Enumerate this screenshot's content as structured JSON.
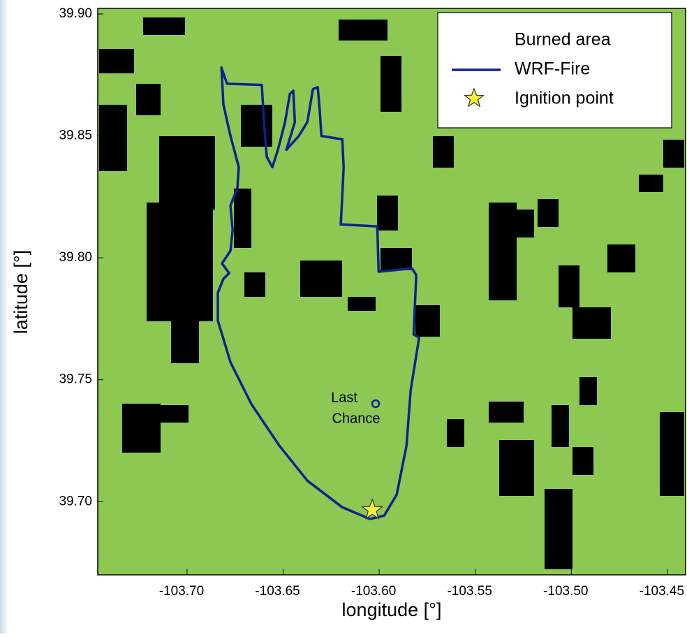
{
  "chart_data": {
    "type": "line",
    "xlabel": "longitude [°]",
    "ylabel": "latitude [°]",
    "xlim": [
      -103.7465,
      -103.4405
    ],
    "ylim": [
      39.67,
      39.9023
    ],
    "xticks": [
      {
        "value": -103.7,
        "label": "-103.70"
      },
      -103.65,
      {
        "value": -103.6,
        "label": "-103.60"
      },
      -103.55,
      {
        "value": -103.5,
        "label": "-103.50"
      },
      -103.45
    ],
    "yticks": [
      {
        "value": 39.7,
        "label": "39.70"
      },
      39.75,
      {
        "value": 39.8,
        "label": "39.80"
      },
      39.85,
      {
        "value": 39.9,
        "label": "39.90"
      }
    ],
    "background_color": "#8cc852",
    "burned_area": {
      "name": "Burned area",
      "color": "#000000"
    },
    "series": [
      {
        "name": "WRF-Fire",
        "color": "#0d2290",
        "x": [
          -103.6047,
          -103.6192,
          -103.6374,
          -103.6519,
          -103.6665,
          -103.6774,
          -103.684,
          -103.684,
          -103.6811,
          -103.6781,
          -103.6818,
          -103.6774,
          -103.6763,
          -103.6774,
          -103.6738,
          -103.6731,
          -103.6774,
          -103.6811,
          -103.6821,
          -103.6792,
          -103.6611,
          -103.66,
          -103.6585,
          -103.6556,
          -103.6527,
          -103.649,
          -103.6465,
          -103.6447,
          -103.6439,
          -103.6483,
          -103.6418,
          -103.6374,
          -103.6345,
          -103.632,
          -103.6309,
          -103.6301,
          -103.6192,
          -103.6185,
          -103.6192,
          -103.62,
          -103.601,
          -103.6003,
          -103.5829,
          -103.5807,
          -103.5821,
          -103.5792,
          -103.5836,
          -103.5858,
          -103.5909,
          -103.5974,
          -103.6047
        ],
        "y": [
          39.6929,
          39.6977,
          39.7086,
          39.7229,
          39.74,
          39.7572,
          39.7743,
          39.7857,
          39.7914,
          39.7937,
          39.7977,
          39.8029,
          39.8114,
          39.8214,
          39.8286,
          39.8372,
          39.85,
          39.8629,
          39.878,
          39.8714,
          39.8709,
          39.8557,
          39.8414,
          39.8372,
          39.8443,
          39.8557,
          39.8672,
          39.8686,
          39.8557,
          39.8443,
          39.85,
          39.8557,
          39.8692,
          39.87,
          39.86,
          39.85,
          39.8486,
          39.8372,
          39.8257,
          39.8137,
          39.8129,
          39.7943,
          39.7957,
          39.7929,
          39.7686,
          39.7672,
          39.7457,
          39.7229,
          39.7029,
          39.6943,
          39.6929
        ]
      }
    ],
    "ignition": {
      "name": "Ignition point",
      "color": "#f7ef3a",
      "x": -103.6036,
      "y": 39.6966
    },
    "annotations": [
      "Last",
      "Chance"
    ],
    "legend": "upper right"
  }
}
